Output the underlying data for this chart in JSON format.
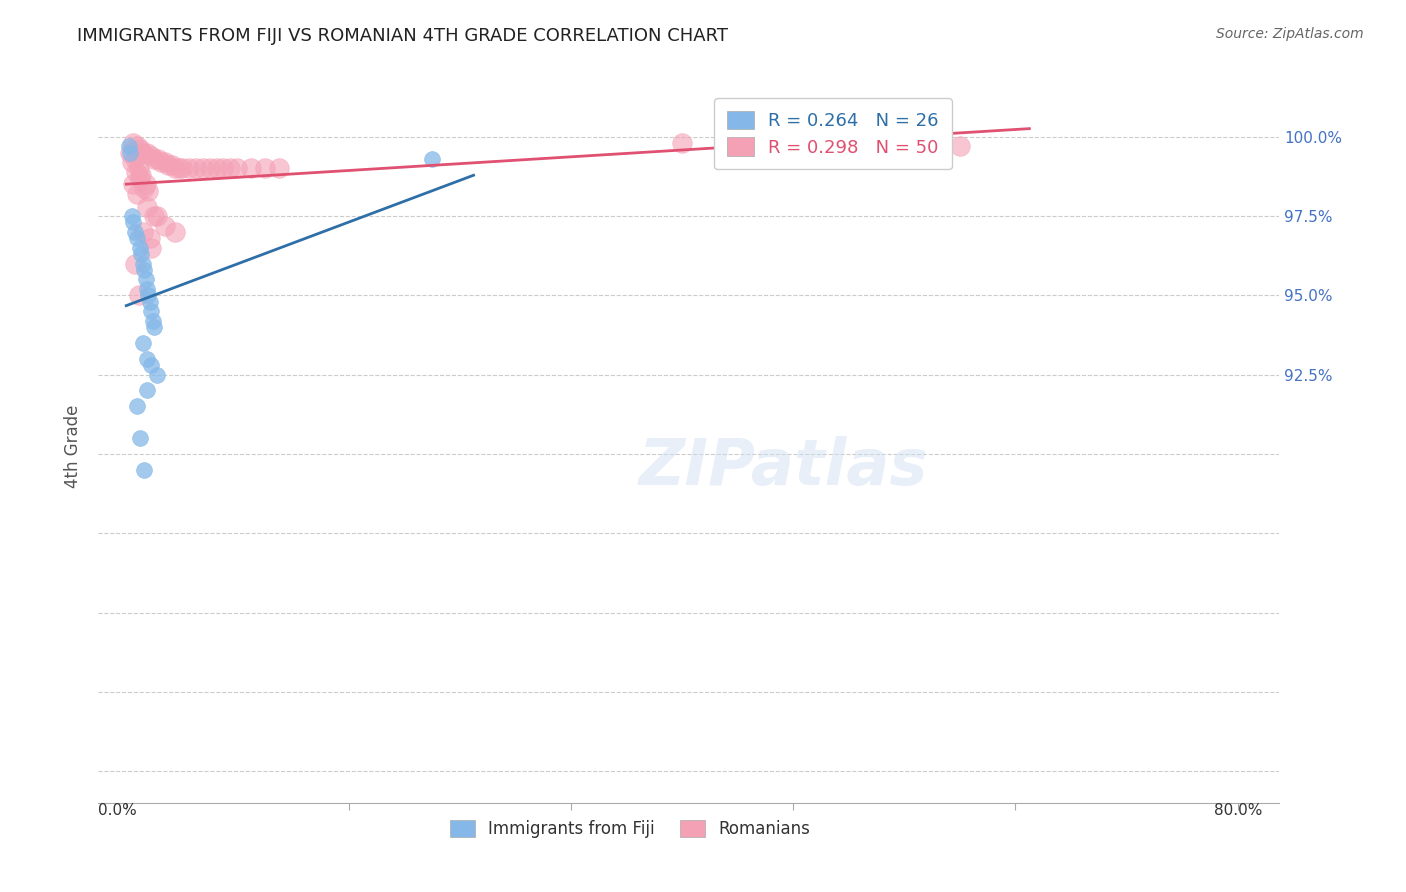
{
  "title": "IMMIGRANTS FROM FIJI VS ROMANIAN 4TH GRADE CORRELATION CHART",
  "source": "Source: ZipAtlas.com",
  "ylabel": "4th Grade",
  "ylim": [
    79.0,
    101.5
  ],
  "xlim": [
    -2.0,
    83.0
  ],
  "yticks": [
    80.0,
    82.5,
    85.0,
    87.5,
    90.0,
    92.5,
    95.0,
    97.5,
    100.0
  ],
  "ytick_labels": [
    "",
    "",
    "",
    "",
    "",
    "92.5%",
    "95.0%",
    "97.5%",
    "100.0%"
  ],
  "xtick_positions": [
    0,
    16,
    32,
    48,
    64,
    80
  ],
  "fiji_color": "#85b8e8",
  "romanian_color": "#f4a0b5",
  "fiji_line_color": "#2e6fa8",
  "romanian_line_color": "#e05070",
  "fiji_R": 0.264,
  "fiji_N": 26,
  "romanian_R": 0.298,
  "romanian_N": 50,
  "legend_fiji_label": "Immigrants from Fiji",
  "legend_romanian_label": "Romanians",
  "fiji_x": [
    0.2,
    0.3,
    0.4,
    0.5,
    0.6,
    0.8,
    1.0,
    1.1,
    1.2,
    1.3,
    1.4,
    1.5,
    1.6,
    1.7,
    1.8,
    1.9,
    2.0,
    1.2,
    1.5,
    1.8,
    2.2,
    0.8,
    1.0,
    1.3,
    22.0,
    1.5
  ],
  "fiji_y": [
    99.7,
    99.5,
    97.5,
    97.3,
    97.0,
    96.8,
    96.5,
    96.3,
    96.0,
    95.8,
    95.5,
    95.2,
    95.0,
    94.8,
    94.5,
    94.2,
    94.0,
    93.5,
    93.0,
    92.8,
    92.5,
    91.5,
    90.5,
    89.5,
    99.3,
    92.0
  ],
  "romanian_x": [
    0.5,
    0.8,
    1.0,
    1.2,
    1.5,
    1.8,
    2.0,
    2.3,
    2.5,
    2.8,
    3.0,
    3.3,
    3.5,
    3.8,
    4.0,
    4.5,
    5.0,
    5.5,
    6.0,
    6.5,
    7.0,
    7.5,
    8.0,
    9.0,
    10.0,
    11.0,
    0.3,
    0.6,
    0.9,
    1.1,
    1.4,
    1.6,
    0.4,
    0.7,
    1.0,
    1.3,
    2.2,
    2.8,
    0.5,
    0.8,
    1.5,
    2.0,
    3.5,
    1.8,
    0.6,
    40.0,
    60.0,
    1.2,
    0.9,
    1.7
  ],
  "romanian_y": [
    99.8,
    99.7,
    99.6,
    99.5,
    99.5,
    99.4,
    99.3,
    99.3,
    99.2,
    99.2,
    99.1,
    99.1,
    99.0,
    99.0,
    99.0,
    99.0,
    99.0,
    99.0,
    99.0,
    99.0,
    99.0,
    99.0,
    99.0,
    99.0,
    99.0,
    99.0,
    99.5,
    99.3,
    99.0,
    98.8,
    98.5,
    98.3,
    99.2,
    98.9,
    98.7,
    98.4,
    97.5,
    97.2,
    98.5,
    98.2,
    97.8,
    97.5,
    97.0,
    96.5,
    96.0,
    99.8,
    99.7,
    97.0,
    95.0,
    96.8
  ],
  "watermark_text": "ZIPatlas",
  "grid_color": "#cccccc",
  "background_color": "#ffffff"
}
